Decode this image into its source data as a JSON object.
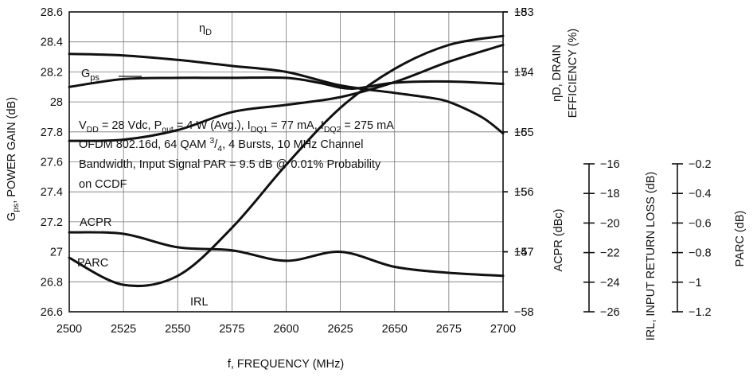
{
  "chart_data": {
    "type": "line",
    "xlabel": "f, FREQUENCY (MHz)",
    "x_ticks": [
      "2500",
      "2525",
      "2550",
      "2575",
      "2600",
      "2625",
      "2650",
      "2675",
      "2700"
    ],
    "xlim": [
      2500,
      2700
    ],
    "axes": {
      "gain": {
        "label": "POWER GAIN (dB)",
        "label_prefix": "G",
        "label_sub": "ps",
        "label_sep": ", ",
        "ylim": [
          26.6,
          28.6
        ],
        "ticks": [
          "28.6",
          "28.4",
          "28.2",
          "28",
          "27.8",
          "27.6",
          "27.4",
          "27.2",
          "27",
          "26.8",
          "26.6"
        ]
      },
      "eff": {
        "label_line1": "D, DRAIN",
        "label_line1_prefix": "η",
        "label_line2": "EFFICIENCY (%)",
        "ylim": [
          13,
          18
        ],
        "ticks": [
          "18",
          "17",
          "16",
          "15",
          "14"
        ]
      },
      "acpr": {
        "label": "ACPR (dBc)",
        "ylim": [
          -58,
          -53
        ],
        "ticks": [
          "-53",
          "-54",
          "-55",
          "-56",
          "-57",
          "-58"
        ]
      },
      "irl": {
        "label": "IRL, INPUT RETURN LOSS (dB)",
        "ylim": [
          -26,
          -16
        ],
        "ticks": [
          "-16",
          "-18",
          "-20",
          "-22",
          "-24",
          "-26"
        ]
      },
      "parc": {
        "label": "PARC (dB)",
        "ylim": [
          -1.2,
          -0.2
        ],
        "ticks": [
          "-0.2",
          "-0.4",
          "-0.6",
          "-0.8",
          "-1",
          "-1.2"
        ]
      }
    },
    "series": [
      {
        "name": "ηD",
        "label_main": "η",
        "label_sub": "D",
        "axis": "eff",
        "x": [
          2500,
          2525,
          2550,
          2575,
          2600,
          2615,
          2630,
          2650,
          2675,
          2700
        ],
        "y": [
          16.75,
          16.88,
          16.9,
          16.9,
          16.9,
          16.82,
          16.72,
          16.82,
          16.84,
          16.8
        ]
      },
      {
        "name": "Gps",
        "label_main": "G",
        "label_sub": "ps",
        "axis": "gain",
        "x": [
          2500,
          2525,
          2550,
          2575,
          2600,
          2625,
          2650,
          2665,
          2675,
          2690,
          2700
        ],
        "y": [
          28.32,
          28.31,
          28.28,
          28.24,
          28.2,
          28.11,
          28.06,
          28.03,
          28.0,
          27.9,
          27.79
        ]
      },
      {
        "name": "ACPR",
        "axis": "acpr",
        "x": [
          2500,
          2525,
          2550,
          2575,
          2600,
          2625,
          2650,
          2675,
          2700
        ],
        "y": [
          -55.15,
          -55.13,
          -54.97,
          -54.67,
          -54.55,
          -54.42,
          -54.17,
          -53.83,
          -53.55
        ]
      },
      {
        "name": "IRL",
        "axis": "irl",
        "x": [
          2500,
          2525,
          2550,
          2575,
          2600,
          2625,
          2650,
          2675,
          2700
        ],
        "y": [
          -24.2,
          -25.1,
          -24.8,
          -23.2,
          -21.1,
          -19.2,
          -17.9,
          -17.1,
          -16.8
        ]
      },
      {
        "name": "PARC",
        "axis": "parc",
        "x": [
          2500,
          2525,
          2550,
          2575,
          2600,
          2625,
          2650,
          2675,
          2700
        ],
        "y": [
          -0.935,
          -0.94,
          -0.985,
          -0.995,
          -1.03,
          -1.0,
          -1.05,
          -1.07,
          -1.08
        ]
      }
    ],
    "annotation_lines": [
      [
        {
          "t": "V"
        },
        {
          "t": "DD",
          "sub": true
        },
        {
          "t": " = 28 Vdc, P"
        },
        {
          "t": "out",
          "sub": true
        },
        {
          "t": " = 4 W (Avg.), I"
        },
        {
          "t": "DQ1",
          "sub": true
        },
        {
          "t": " = 77 mA, I"
        },
        {
          "t": "DQ2",
          "sub": true
        },
        {
          "t": " = 275 mA"
        }
      ],
      [
        {
          "t": "OFDM 802.16d, 64 QAM "
        },
        {
          "t": "3",
          "sup": true
        },
        {
          "t": "/"
        },
        {
          "t": "4",
          "sub": true
        },
        {
          "t": ", 4 Bursts, 10 MHz Channel"
        }
      ],
      [
        {
          "t": "Bandwidth, Input Signal PAR = 9.5 dB @ 0.01% Probability"
        }
      ],
      [
        {
          "t": "on CCDF"
        }
      ]
    ],
    "grid": true,
    "legend": "inline labels"
  }
}
